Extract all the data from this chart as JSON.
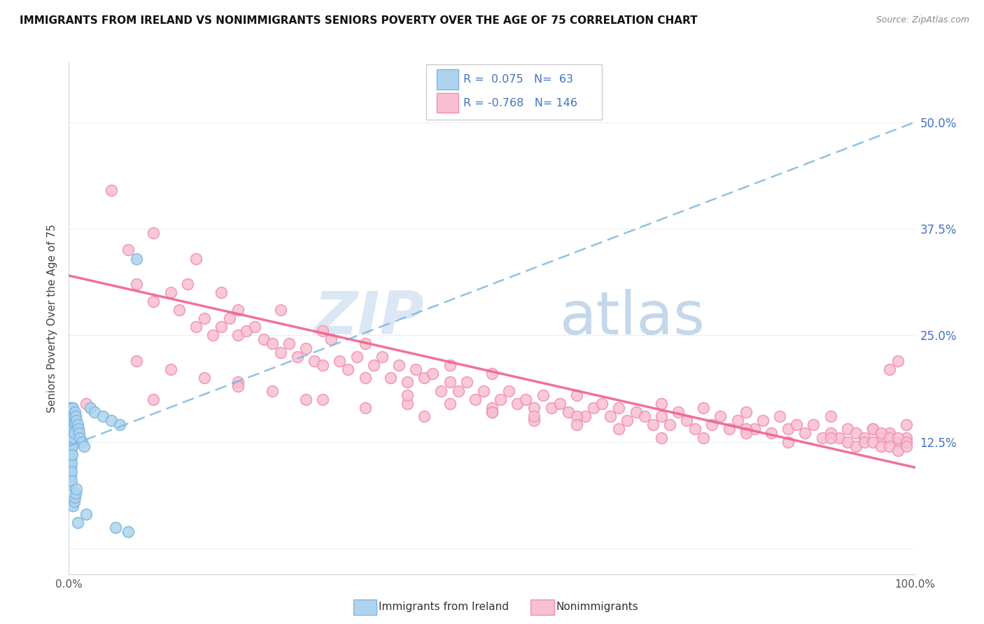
{
  "title": "IMMIGRANTS FROM IRELAND VS NONIMMIGRANTS SENIORS POVERTY OVER THE AGE OF 75 CORRELATION CHART",
  "source": "Source: ZipAtlas.com",
  "ylabel": "Seniors Poverty Over the Age of 75",
  "r_blue": 0.075,
  "n_blue": 63,
  "r_pink": -0.768,
  "n_pink": 146,
  "xlim": [
    0,
    1
  ],
  "ylim": [
    -0.03,
    0.57
  ],
  "yticks": [
    0,
    0.125,
    0.25,
    0.375,
    0.5
  ],
  "ytick_labels": [
    "",
    "12.5%",
    "25.0%",
    "37.5%",
    "50.0%"
  ],
  "color_blue": "#7ab8e0",
  "color_blue_fill": "#aed4ee",
  "color_blue_line": "#7ab8e0",
  "color_pink": "#f090b0",
  "color_pink_fill": "#f8c0d0",
  "color_pink_line": "#f06090",
  "color_right_axis": "#4472c4",
  "watermark_zip": "ZIP",
  "watermark_atlas": "atlas",
  "blue_trend_x0": 0.0,
  "blue_trend_y0": 0.12,
  "blue_trend_x1": 1.0,
  "blue_trend_y1": 0.5,
  "pink_trend_x0": 0.0,
  "pink_trend_y0": 0.32,
  "pink_trend_x1": 1.0,
  "pink_trend_y1": 0.095,
  "blue_scatter_x": [
    0.001,
    0.001,
    0.001,
    0.001,
    0.001,
    0.002,
    0.002,
    0.002,
    0.002,
    0.002,
    0.002,
    0.002,
    0.002,
    0.002,
    0.002,
    0.003,
    0.003,
    0.003,
    0.003,
    0.003,
    0.003,
    0.003,
    0.003,
    0.003,
    0.003,
    0.004,
    0.004,
    0.004,
    0.004,
    0.004,
    0.004,
    0.005,
    0.005,
    0.005,
    0.005,
    0.005,
    0.006,
    0.006,
    0.006,
    0.006,
    0.007,
    0.007,
    0.007,
    0.008,
    0.008,
    0.009,
    0.009,
    0.01,
    0.01,
    0.011,
    0.012,
    0.013,
    0.015,
    0.018,
    0.02,
    0.025,
    0.03,
    0.04,
    0.05,
    0.055,
    0.06,
    0.07,
    0.08
  ],
  "blue_scatter_y": [
    0.155,
    0.145,
    0.135,
    0.125,
    0.115,
    0.165,
    0.155,
    0.145,
    0.135,
    0.125,
    0.115,
    0.105,
    0.095,
    0.085,
    0.075,
    0.165,
    0.155,
    0.148,
    0.14,
    0.13,
    0.12,
    0.11,
    0.1,
    0.09,
    0.08,
    0.16,
    0.15,
    0.14,
    0.13,
    0.12,
    0.11,
    0.165,
    0.155,
    0.14,
    0.13,
    0.05,
    0.155,
    0.145,
    0.135,
    0.055,
    0.16,
    0.148,
    0.06,
    0.155,
    0.065,
    0.15,
    0.07,
    0.145,
    0.03,
    0.14,
    0.135,
    0.13,
    0.125,
    0.12,
    0.04,
    0.165,
    0.16,
    0.155,
    0.15,
    0.025,
    0.145,
    0.02,
    0.34
  ],
  "pink_scatter_x": [
    0.02,
    0.05,
    0.07,
    0.08,
    0.1,
    0.1,
    0.12,
    0.13,
    0.14,
    0.15,
    0.15,
    0.16,
    0.17,
    0.18,
    0.18,
    0.19,
    0.2,
    0.2,
    0.21,
    0.22,
    0.23,
    0.24,
    0.25,
    0.25,
    0.26,
    0.27,
    0.28,
    0.29,
    0.3,
    0.3,
    0.31,
    0.32,
    0.33,
    0.34,
    0.35,
    0.35,
    0.36,
    0.37,
    0.38,
    0.39,
    0.4,
    0.41,
    0.42,
    0.43,
    0.44,
    0.45,
    0.45,
    0.46,
    0.47,
    0.48,
    0.49,
    0.5,
    0.51,
    0.52,
    0.53,
    0.54,
    0.55,
    0.56,
    0.57,
    0.58,
    0.59,
    0.6,
    0.61,
    0.62,
    0.63,
    0.64,
    0.65,
    0.66,
    0.67,
    0.68,
    0.69,
    0.7,
    0.71,
    0.72,
    0.73,
    0.74,
    0.75,
    0.76,
    0.77,
    0.78,
    0.79,
    0.8,
    0.81,
    0.82,
    0.83,
    0.84,
    0.85,
    0.86,
    0.87,
    0.88,
    0.89,
    0.9,
    0.91,
    0.92,
    0.93,
    0.94,
    0.95,
    0.96,
    0.97,
    0.98,
    0.99,
    0.1,
    0.2,
    0.3,
    0.4,
    0.5,
    0.6,
    0.7,
    0.8,
    0.9,
    0.95,
    0.96,
    0.97,
    0.98,
    0.99,
    0.5,
    0.55,
    0.6,
    0.65,
    0.7,
    0.75,
    0.8,
    0.85,
    0.9,
    0.92,
    0.93,
    0.94,
    0.95,
    0.96,
    0.97,
    0.98,
    0.99,
    0.4,
    0.45,
    0.5,
    0.55,
    0.08,
    0.12,
    0.16,
    0.2,
    0.24,
    0.28,
    0.35,
    0.42,
    0.98,
    0.99,
    0.97
  ],
  "pink_scatter_y": [
    0.17,
    0.42,
    0.35,
    0.31,
    0.37,
    0.29,
    0.3,
    0.28,
    0.31,
    0.26,
    0.34,
    0.27,
    0.25,
    0.3,
    0.26,
    0.27,
    0.25,
    0.28,
    0.255,
    0.26,
    0.245,
    0.24,
    0.28,
    0.23,
    0.24,
    0.225,
    0.235,
    0.22,
    0.255,
    0.215,
    0.245,
    0.22,
    0.21,
    0.225,
    0.24,
    0.2,
    0.215,
    0.225,
    0.2,
    0.215,
    0.195,
    0.21,
    0.2,
    0.205,
    0.185,
    0.195,
    0.215,
    0.185,
    0.195,
    0.175,
    0.185,
    0.205,
    0.175,
    0.185,
    0.17,
    0.175,
    0.165,
    0.18,
    0.165,
    0.17,
    0.16,
    0.18,
    0.155,
    0.165,
    0.17,
    0.155,
    0.165,
    0.15,
    0.16,
    0.155,
    0.145,
    0.17,
    0.145,
    0.16,
    0.15,
    0.14,
    0.165,
    0.145,
    0.155,
    0.14,
    0.15,
    0.16,
    0.14,
    0.15,
    0.135,
    0.155,
    0.14,
    0.145,
    0.135,
    0.145,
    0.13,
    0.155,
    0.13,
    0.14,
    0.135,
    0.13,
    0.14,
    0.13,
    0.135,
    0.125,
    0.13,
    0.175,
    0.195,
    0.175,
    0.17,
    0.165,
    0.155,
    0.155,
    0.14,
    0.135,
    0.14,
    0.135,
    0.13,
    0.13,
    0.125,
    0.16,
    0.15,
    0.145,
    0.14,
    0.13,
    0.13,
    0.135,
    0.125,
    0.13,
    0.125,
    0.12,
    0.125,
    0.125,
    0.12,
    0.12,
    0.115,
    0.12,
    0.18,
    0.17,
    0.16,
    0.155,
    0.22,
    0.21,
    0.2,
    0.19,
    0.185,
    0.175,
    0.165,
    0.155,
    0.22,
    0.145,
    0.21
  ]
}
